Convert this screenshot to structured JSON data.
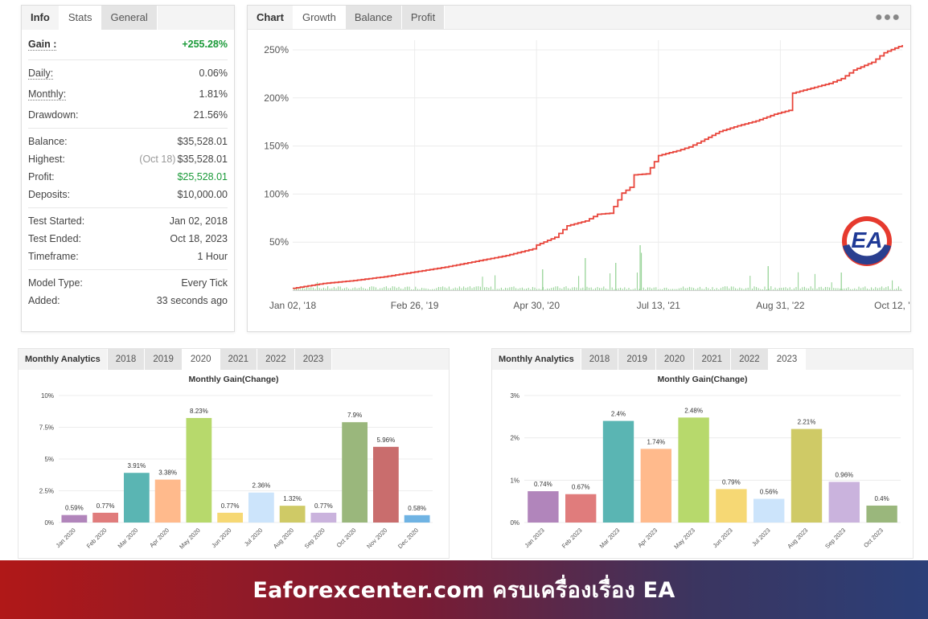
{
  "info_panel": {
    "tabs": [
      "Info",
      "Stats",
      "General"
    ],
    "gain": {
      "label": "Gain :",
      "value": "+255.28%"
    },
    "daily": {
      "label": "Daily:",
      "value": "0.06%"
    },
    "monthly": {
      "label": "Monthly:",
      "value": "1.81%"
    },
    "drawdown": {
      "label": "Drawdown:",
      "value": "21.56%"
    },
    "balance": {
      "label": "Balance:",
      "value": "$35,528.01"
    },
    "highest": {
      "label": "Highest:",
      "date": "(Oct 18)",
      "value": "$35,528.01"
    },
    "profit": {
      "label": "Profit:",
      "value": "$25,528.01"
    },
    "deposits": {
      "label": "Deposits:",
      "value": "$10,000.00"
    },
    "test_started": {
      "label": "Test Started:",
      "value": "Jan 02, 2018"
    },
    "test_ended": {
      "label": "Test Ended:",
      "value": "Oct 18, 2023"
    },
    "timeframe": {
      "label": "Timeframe:",
      "value": "1 Hour"
    },
    "model_type": {
      "label": "Model Type:",
      "value": "Every Tick"
    },
    "added": {
      "label": "Added:",
      "value": "33 seconds ago"
    }
  },
  "chart_panel": {
    "tabs": [
      "Chart",
      "Growth",
      "Balance",
      "Profit"
    ],
    "menu_icon": "more-dots-icon",
    "logo_text": "EA"
  },
  "chart_data": [
    {
      "type": "line",
      "y_ticks": [
        "250%",
        "200%",
        "150%",
        "100%",
        "50%"
      ],
      "y_tick_values": [
        250,
        200,
        150,
        100,
        50
      ],
      "x_ticks": [
        "Jan 02, '18",
        "Feb 26, '19",
        "Apr 30, '20",
        "Jul 13, '21",
        "Aug 31, '22",
        "Oct 12, '23"
      ],
      "ylim": [
        0,
        260
      ],
      "grid": true,
      "line_color": "#e8443a",
      "volume_color": "#8fd08f",
      "series": [
        {
          "x": [
            0,
            0.05,
            0.1,
            0.15,
            0.2,
            0.25,
            0.3,
            0.35,
            0.4,
            0.4,
            0.43,
            0.45,
            0.48,
            0.5,
            0.52,
            0.54,
            0.56,
            0.56,
            0.58,
            0.6,
            0.63,
            0.65,
            0.67,
            0.7,
            0.73,
            0.76,
            0.79,
            0.82,
            0.82,
            0.85,
            0.88,
            0.9,
            0.92,
            0.95,
            0.97,
            1.0
          ],
          "y": [
            2,
            7,
            10,
            14,
            19,
            24,
            30,
            36,
            44,
            47,
            55,
            67,
            72,
            79,
            80,
            101,
            110,
            120,
            121,
            140,
            145,
            149,
            155,
            165,
            171,
            176,
            183,
            188,
            205,
            210,
            215,
            220,
            229,
            237,
            247,
            255
          ]
        }
      ]
    },
    {
      "type": "bar",
      "title": "Monthly Gain(Change)",
      "year": "2020",
      "categories": [
        "Jan 2020",
        "Feb 2020",
        "Mar 2020",
        "Apr 2020",
        "May 2020",
        "Jun 2020",
        "Jul 2020",
        "Aug 2020",
        "Sep 2020",
        "Oct 2020",
        "Nov 2020",
        "Dec 2020"
      ],
      "values": [
        0.59,
        0.77,
        3.91,
        3.38,
        8.23,
        0.77,
        2.36,
        1.32,
        0.77,
        7.9,
        5.96,
        0.58
      ],
      "value_labels": [
        "0.59%",
        "0.77%",
        "3.91%",
        "3.38%",
        "8.23%",
        "0.77%",
        "2.36%",
        "1.32%",
        "0.77%",
        "7.9%",
        "5.96%",
        "0.58%"
      ],
      "colors": [
        "#b185bb",
        "#e07c7c",
        "#5ab5b3",
        "#ffba8c",
        "#b7d96c",
        "#f6d874",
        "#cce4fb",
        "#cfca66",
        "#cab3dd",
        "#9ab77c",
        "#c96d6d",
        "#6fb3e3"
      ],
      "y_ticks": [
        "10%",
        "7.5%",
        "5%",
        "2.5%",
        "0%"
      ],
      "y_tick_values": [
        10,
        7.5,
        5,
        2.5,
        0
      ],
      "ylim": [
        0,
        10
      ]
    },
    {
      "type": "bar",
      "title": "Monthly Gain(Change)",
      "year": "2023",
      "categories": [
        "Jan 2023",
        "Feb 2023",
        "Mar 2023",
        "Apr 2023",
        "May 2023",
        "Jun 2023",
        "Jul 2023",
        "Aug 2023",
        "Sep 2023",
        "Oct 2023"
      ],
      "values": [
        0.74,
        0.67,
        2.4,
        1.74,
        2.48,
        0.79,
        0.56,
        2.21,
        0.96,
        0.4
      ],
      "value_labels": [
        "0.74%",
        "0.67%",
        "2.4%",
        "1.74%",
        "2.48%",
        "0.79%",
        "0.56%",
        "2.21%",
        "0.96%",
        "0.4%"
      ],
      "colors": [
        "#b185bb",
        "#e07c7c",
        "#5ab5b3",
        "#ffba8c",
        "#b7d96c",
        "#f6d874",
        "#cce4fb",
        "#cfca66",
        "#cab3dd",
        "#9ab77c"
      ],
      "y_ticks": [
        "3%",
        "2%",
        "1%",
        "0%"
      ],
      "y_tick_values": [
        3,
        2,
        1,
        0
      ],
      "ylim": [
        0,
        3
      ]
    }
  ],
  "analytics_left": {
    "tabs": [
      "Monthly Analytics",
      "2018",
      "2019",
      "2020",
      "2021",
      "2022",
      "2023"
    ],
    "active": "2020",
    "title": "Monthly Gain(Change)"
  },
  "analytics_right": {
    "tabs": [
      "Monthly Analytics",
      "2018",
      "2019",
      "2020",
      "2021",
      "2022",
      "2023"
    ],
    "active": "2023",
    "title": "Monthly Gain(Change)"
  },
  "footer": {
    "text": "Eaforexcenter.com ครบเครื่องเรื่อง EA"
  }
}
